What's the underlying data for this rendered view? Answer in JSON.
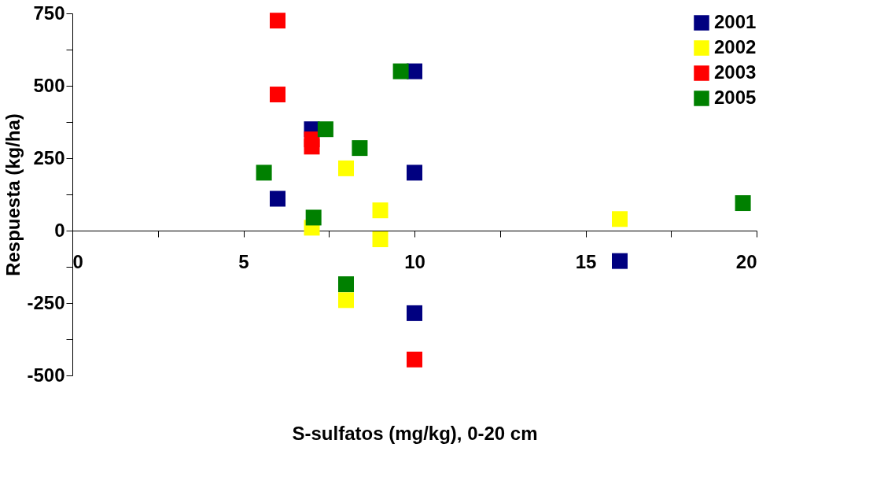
{
  "chart_data": {
    "type": "scatter",
    "xlabel": "S-sulfatos (mg/kg), 0-20 cm",
    "ylabel": "Respuesta (kg/ha)",
    "xlim": [
      0,
      20
    ],
    "ylim": [
      -500,
      750
    ],
    "xticks": [
      0,
      {
        "value": 2.5,
        "label": null
      },
      5,
      {
        "value": 7.5,
        "label": null
      },
      10,
      {
        "value": 12.5,
        "label": null
      },
      15,
      {
        "value": 17.5,
        "label": null
      },
      20
    ],
    "yticks": [
      -500,
      {
        "value": -375,
        "label": null
      },
      -250,
      {
        "value": -125,
        "label": null
      },
      0,
      {
        "value": 125,
        "label": null
      },
      250,
      {
        "value": 375,
        "label": null
      },
      500,
      {
        "value": 625,
        "label": null
      },
      750
    ],
    "marker": "square",
    "legend": "top right",
    "grid": false,
    "series": [
      {
        "name": "2001",
        "color": "#000080",
        "x": [
          10,
          7,
          6,
          10,
          10,
          16
        ],
        "values": [
          550,
          350,
          110,
          200,
          -285,
          -105
        ]
      },
      {
        "name": "2002",
        "color": "#ffff00",
        "x": [
          7,
          8,
          9,
          9,
          8,
          16
        ],
        "values": [
          10,
          215,
          70,
          -30,
          -240,
          40
        ]
      },
      {
        "name": "2003",
        "color": "#ff0000",
        "x": [
          6,
          6,
          7,
          7,
          10
        ],
        "values": [
          725,
          470,
          315,
          290,
          -445
        ]
      },
      {
        "name": "2005",
        "color": "#008000",
        "x": [
          9.6,
          7.4,
          8.4,
          5.6,
          7.05,
          8,
          19.6
        ],
        "values": [
          550,
          350,
          285,
          200,
          45,
          -185,
          95
        ]
      }
    ]
  }
}
